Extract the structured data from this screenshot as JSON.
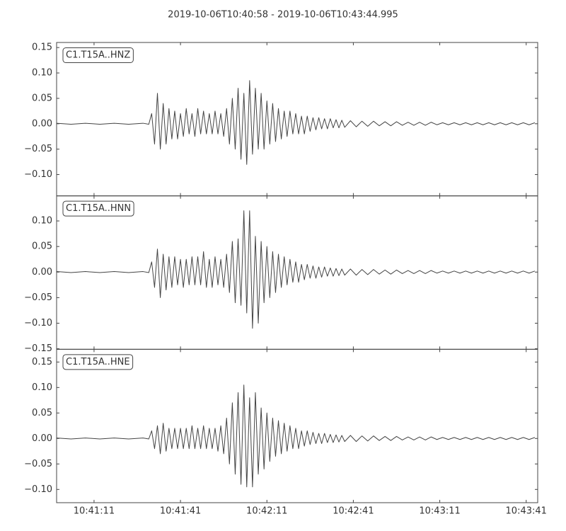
{
  "chart_data": {
    "type": "line",
    "title": "2019-10-06T10:40:58  -  2019-10-06T10:43:44.995",
    "x": [
      0,
      5,
      10,
      15,
      20,
      25,
      30,
      32,
      33,
      34,
      35,
      36,
      37,
      38,
      39,
      40,
      41,
      42,
      43,
      44,
      45,
      46,
      47,
      48,
      49,
      50,
      51,
      52,
      53,
      54,
      55,
      56,
      57,
      58,
      59,
      60,
      61,
      62,
      63,
      64,
      65,
      66,
      67,
      68,
      69,
      70,
      71,
      72,
      73,
      74,
      75,
      76,
      77,
      78,
      79,
      80,
      81,
      82,
      83,
      84,
      85,
      86,
      87,
      88,
      89,
      90,
      91,
      92,
      93,
      94,
      95,
      96,
      97,
      98,
      99,
      100,
      102,
      104,
      106,
      108,
      110,
      112,
      114,
      116,
      118,
      120,
      122,
      124,
      126,
      128,
      130,
      132,
      134,
      136,
      138,
      140,
      142,
      144,
      146,
      148,
      150,
      152,
      154,
      156,
      158,
      160,
      162,
      164,
      166
    ],
    "xlim": [
      0,
      166.995
    ],
    "xticks": [
      {
        "value": 13,
        "label": "10:41:11"
      },
      {
        "value": 43,
        "label": "10:41:41"
      },
      {
        "value": 73,
        "label": "10:42:11"
      },
      {
        "value": 103,
        "label": "10:42:41"
      },
      {
        "value": 133,
        "label": "10:43:11"
      },
      {
        "value": 163,
        "label": "10:43:41"
      }
    ],
    "series": [
      {
        "name": "C1.T15A..HNZ",
        "color": "#444444",
        "ylim": [
          -0.142,
          0.16
        ],
        "yticks": [
          {
            "value": -0.1,
            "label": "−0.10"
          },
          {
            "value": -0.05,
            "label": "−0.05"
          },
          {
            "value": 0,
            "label": "0.00"
          },
          0.05,
          {
            "value": 0.1,
            "label": "0.10"
          },
          0.15
        ],
        "values": [
          0.001,
          -0.001,
          0.001,
          -0.001,
          0.001,
          -0.001,
          0.001,
          -0.001,
          0.02,
          -0.04,
          0.06,
          -0.05,
          0.04,
          -0.04,
          0.03,
          -0.03,
          0.025,
          -0.03,
          0.02,
          -0.025,
          0.03,
          -0.02,
          0.02,
          -0.025,
          0.03,
          -0.02,
          0.025,
          -0.02,
          0.02,
          -0.02,
          0.025,
          -0.02,
          0.02,
          -0.025,
          0.03,
          -0.04,
          0.05,
          -0.05,
          0.07,
          -0.07,
          0.06,
          -0.08,
          0.085,
          -0.06,
          0.07,
          -0.05,
          0.06,
          -0.05,
          0.045,
          -0.04,
          0.04,
          -0.035,
          0.03,
          -0.03,
          0.025,
          -0.025,
          0.025,
          -0.02,
          0.02,
          -0.02,
          0.015,
          -0.02,
          0.015,
          -0.015,
          0.012,
          -0.012,
          0.012,
          -0.01,
          0.01,
          -0.01,
          0.01,
          -0.008,
          0.008,
          -0.008,
          0.007,
          -0.007,
          0.006,
          -0.006,
          0.005,
          -0.005,
          0.005,
          -0.004,
          0.004,
          -0.004,
          0.004,
          -0.003,
          0.003,
          -0.003,
          0.003,
          -0.003,
          0.003,
          -0.002,
          0.002,
          -0.002,
          0.002,
          -0.002,
          0.002,
          -0.002,
          0.002,
          -0.002,
          0.002,
          -0.002,
          0.002,
          -0.002,
          0.002,
          -0.002,
          0.002,
          -0.002,
          0.002
        ]
      },
      {
        "name": "C1.T15A..HNN",
        "color": "#444444",
        "ylim": [
          -0.151,
          0.149
        ],
        "yticks": [
          {
            "value": -0.15,
            "label": "−0.15"
          },
          {
            "value": -0.1,
            "label": "−0.10"
          },
          {
            "value": -0.05,
            "label": "−0.05"
          },
          {
            "value": 0,
            "label": "0.00"
          },
          0.05,
          {
            "value": 0.1,
            "label": "0.10"
          }
        ],
        "values": [
          0.001,
          -0.001,
          0.001,
          -0.001,
          0.001,
          -0.001,
          0.001,
          -0.001,
          0.02,
          -0.03,
          0.045,
          -0.05,
          0.035,
          -0.035,
          0.03,
          -0.03,
          0.03,
          -0.025,
          0.025,
          -0.03,
          0.025,
          -0.025,
          0.03,
          -0.025,
          0.03,
          -0.025,
          0.04,
          -0.03,
          0.025,
          -0.03,
          0.03,
          -0.025,
          0.025,
          -0.03,
          0.035,
          -0.04,
          0.06,
          -0.06,
          0.065,
          -0.065,
          0.12,
          -0.08,
          0.12,
          -0.11,
          0.07,
          -0.1,
          0.06,
          -0.06,
          0.05,
          -0.05,
          0.04,
          -0.04,
          0.035,
          -0.03,
          0.03,
          -0.025,
          0.025,
          -0.02,
          0.02,
          -0.02,
          0.015,
          -0.015,
          0.015,
          -0.012,
          0.012,
          -0.012,
          0.01,
          -0.01,
          0.01,
          -0.008,
          0.008,
          -0.008,
          0.007,
          -0.007,
          0.006,
          -0.006,
          0.006,
          -0.006,
          0.005,
          -0.005,
          0.005,
          -0.004,
          0.004,
          -0.004,
          0.004,
          -0.003,
          0.003,
          -0.003,
          0.003,
          -0.003,
          0.003,
          -0.002,
          0.002,
          -0.002,
          0.002,
          -0.002,
          0.002,
          -0.002,
          0.002,
          -0.002,
          0.002,
          -0.002,
          0.002,
          -0.002,
          0.002,
          -0.002,
          0.002,
          -0.002,
          0.002
        ]
      },
      {
        "name": "C1.T15A..HNE",
        "color": "#444444",
        "ylim": [
          -0.126,
          0.175
        ],
        "yticks": [
          {
            "value": -0.1,
            "label": "−0.10"
          },
          {
            "value": -0.05,
            "label": "−0.05"
          },
          {
            "value": 0,
            "label": "0.00"
          },
          0.05,
          {
            "value": 0.1,
            "label": "0.10"
          },
          0.15
        ],
        "values": [
          0.001,
          -0.001,
          0.001,
          -0.001,
          0.001,
          -0.001,
          0.001,
          -0.001,
          0.015,
          -0.02,
          0.025,
          -0.03,
          0.03,
          -0.025,
          0.02,
          -0.02,
          0.02,
          -0.02,
          0.02,
          -0.02,
          0.02,
          -0.02,
          0.025,
          -0.02,
          0.02,
          -0.02,
          0.025,
          -0.02,
          0.02,
          -0.02,
          0.02,
          -0.025,
          0.025,
          -0.03,
          0.04,
          -0.05,
          0.07,
          -0.07,
          0.09,
          -0.09,
          0.105,
          -0.095,
          0.08,
          -0.095,
          0.09,
          -0.07,
          0.06,
          -0.06,
          0.05,
          -0.045,
          0.04,
          -0.035,
          0.035,
          -0.03,
          0.03,
          -0.025,
          0.025,
          -0.02,
          0.02,
          -0.02,
          0.015,
          -0.015,
          0.015,
          -0.012,
          0.012,
          -0.01,
          0.01,
          -0.01,
          0.01,
          -0.008,
          0.008,
          -0.008,
          0.007,
          -0.007,
          0.006,
          -0.006,
          0.006,
          -0.006,
          0.005,
          -0.005,
          0.005,
          -0.004,
          0.004,
          -0.004,
          0.004,
          -0.003,
          0.003,
          -0.003,
          0.003,
          -0.003,
          0.003,
          -0.002,
          0.002,
          -0.002,
          0.002,
          -0.002,
          0.002,
          -0.002,
          0.002,
          -0.002,
          0.002,
          -0.002,
          0.002,
          -0.002,
          0.002,
          -0.002,
          0.002,
          -0.002,
          0.002
        ]
      }
    ]
  }
}
